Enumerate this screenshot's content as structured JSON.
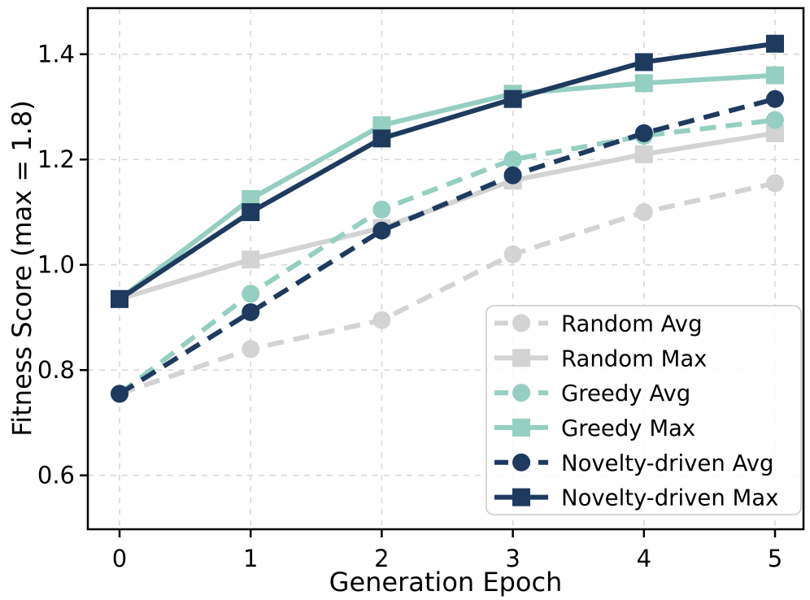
{
  "chart_data": {
    "type": "line",
    "title": "",
    "xlabel": "Generation Epoch",
    "ylabel": "Fitness Score (max = 1.8)",
    "x": [
      0,
      1,
      2,
      3,
      4,
      5
    ],
    "xtick_labels": [
      "0",
      "1",
      "2",
      "3",
      "4",
      "5"
    ],
    "ytick_values": [
      0.6,
      0.8,
      1.0,
      1.2,
      1.4
    ],
    "ytick_labels": [
      "0.6",
      "0.8",
      "1.0",
      "1.2",
      "1.4"
    ],
    "xlim": [
      -0.25,
      5.25
    ],
    "ylim": [
      0.5,
      1.49
    ],
    "grid": true,
    "grid_style": "dashed",
    "legend_position": "lower right",
    "series": [
      {
        "name": "Random Avg",
        "color": "#d3d3d3",
        "line_style": "dashed",
        "marker": "circle",
        "values": [
          0.755,
          0.84,
          0.895,
          1.02,
          1.1,
          1.155
        ]
      },
      {
        "name": "Random Max",
        "color": "#d3d3d3",
        "line_style": "solid",
        "marker": "square",
        "values": [
          0.935,
          1.01,
          1.07,
          1.16,
          1.21,
          1.25
        ]
      },
      {
        "name": "Greedy Avg",
        "color": "#94cfc1",
        "line_style": "dashed",
        "marker": "circle",
        "values": [
          0.755,
          0.945,
          1.105,
          1.2,
          1.245,
          1.275
        ]
      },
      {
        "name": "Greedy Max",
        "color": "#94cfc1",
        "line_style": "solid",
        "marker": "square",
        "values": [
          0.935,
          1.125,
          1.265,
          1.325,
          1.345,
          1.36
        ]
      },
      {
        "name": "Novelty-driven Avg",
        "color": "#1e3a5f",
        "line_style": "dashed",
        "marker": "circle",
        "values": [
          0.755,
          0.91,
          1.065,
          1.17,
          1.25,
          1.315
        ]
      },
      {
        "name": "Novelty-driven Max",
        "color": "#1e3a5f",
        "line_style": "solid",
        "marker": "square",
        "values": [
          0.935,
          1.1,
          1.24,
          1.315,
          1.385,
          1.42
        ]
      }
    ],
    "colors": {
      "random": "#d3d3d3",
      "greedy": "#94cfc1",
      "novelty": "#1e3a5f",
      "gridline": "#d9d9d9",
      "spine": "#000000",
      "legend_border": "#cccccc",
      "legend_background": "#ffffff"
    }
  }
}
